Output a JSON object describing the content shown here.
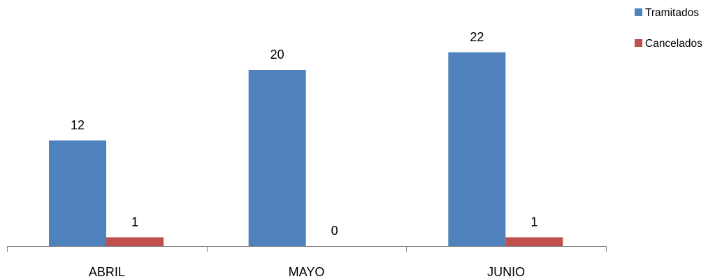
{
  "chart_data": {
    "type": "bar",
    "categories": [
      "ABRIL",
      "MAYO",
      "JUNIO"
    ],
    "series": [
      {
        "name": "Tramitados",
        "values": [
          12,
          20,
          22
        ],
        "color": "#4F81BD"
      },
      {
        "name": "Cancelados",
        "values": [
          1,
          0,
          1
        ],
        "color": "#C0504D"
      }
    ],
    "ylim": [
      0,
      24
    ],
    "grid": false,
    "legend_position": "top-right",
    "data_labels": true
  }
}
